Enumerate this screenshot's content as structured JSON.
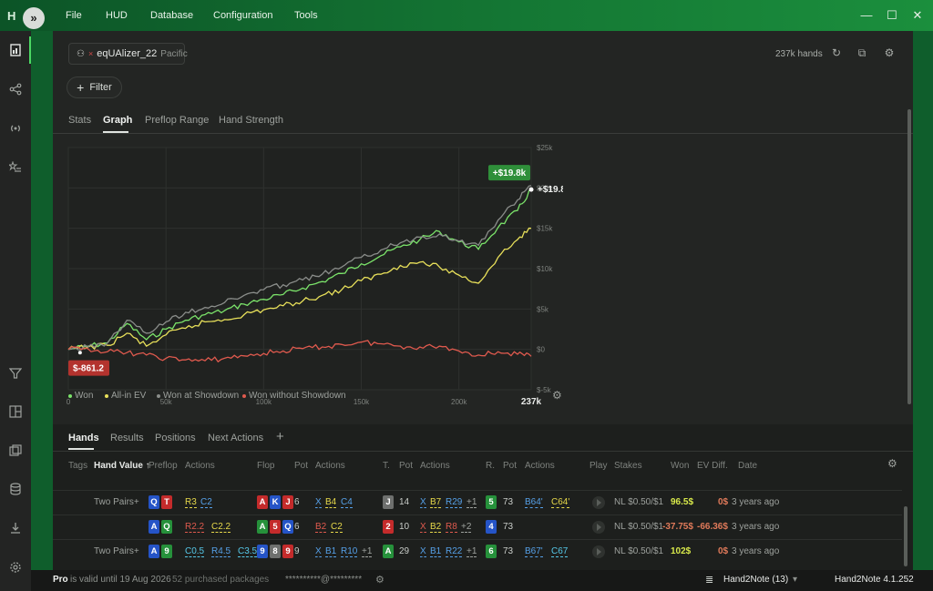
{
  "menu": {
    "items": [
      "File",
      "HUD",
      "Database",
      "Configuration",
      "Tools"
    ]
  },
  "player": {
    "name": "eqUAlizer_22",
    "site": "Pacific",
    "hands": "237k hands"
  },
  "filter_label": "Filter",
  "tabs": [
    "Stats",
    "Graph",
    "Preflop Range",
    "Hand Strength"
  ],
  "chart_data": {
    "type": "line",
    "x_ticks": [
      "0",
      "50k",
      "100k",
      "150k",
      "200k",
      "237k"
    ],
    "y_ticks": [
      "$25k",
      "$20k",
      "$15k",
      "$10k",
      "$5k",
      "$0",
      "$-5k"
    ],
    "ylim": [
      -5000,
      25000
    ],
    "xlim": [
      0,
      237000
    ],
    "grid": true,
    "legend": "bottom-left",
    "badge_high": "+$19.8k",
    "end_label": "+$19.8k",
    "badge_low": "$-861.2",
    "series": [
      {
        "name": "Won",
        "color": "#7be36a",
        "x": [
          0,
          10000,
          20000,
          30000,
          40000,
          50000,
          60000,
          70000,
          80000,
          90000,
          100000,
          110000,
          120000,
          130000,
          140000,
          150000,
          160000,
          170000,
          180000,
          190000,
          200000,
          210000,
          220000,
          230000,
          237000
        ],
        "y": [
          0,
          400,
          800,
          3200,
          1200,
          2500,
          3600,
          4300,
          4800,
          5600,
          6200,
          6800,
          7600,
          8400,
          9400,
          10600,
          11600,
          12700,
          13600,
          14600,
          13300,
          12400,
          15100,
          17200,
          19800
        ]
      },
      {
        "name": "All-in EV",
        "color": "#e8e05a",
        "x": [
          0,
          10000,
          20000,
          30000,
          40000,
          50000,
          60000,
          70000,
          80000,
          90000,
          100000,
          110000,
          120000,
          130000,
          140000,
          150000,
          160000,
          170000,
          180000,
          190000,
          200000,
          210000,
          220000,
          230000,
          237000
        ],
        "y": [
          0,
          300,
          500,
          2000,
          400,
          1800,
          2600,
          3400,
          3700,
          4300,
          4900,
          5400,
          6000,
          6700,
          7400,
          8500,
          9300,
          10400,
          10800,
          10200,
          9200,
          8200,
          11400,
          13600,
          15000
        ]
      },
      {
        "name": "Won at Showdown",
        "color": "#8a8d8a",
        "x": [
          0,
          10000,
          20000,
          30000,
          40000,
          50000,
          60000,
          70000,
          80000,
          90000,
          100000,
          110000,
          120000,
          130000,
          140000,
          150000,
          160000,
          170000,
          180000,
          190000,
          200000,
          210000,
          220000,
          230000,
          237000
        ],
        "y": [
          0,
          300,
          800,
          3600,
          2000,
          3400,
          4600,
          5200,
          5800,
          6700,
          7400,
          8000,
          8600,
          9300,
          10200,
          11400,
          12300,
          13200,
          13900,
          14300,
          13400,
          12900,
          16000,
          18500,
          20300
        ]
      },
      {
        "name": "Won without Showdown",
        "color": "#e05a4e",
        "x": [
          0,
          10000,
          20000,
          30000,
          40000,
          50000,
          60000,
          70000,
          80000,
          90000,
          100000,
          110000,
          120000,
          130000,
          140000,
          150000,
          160000,
          170000,
          180000,
          190000,
          200000,
          210000,
          220000,
          230000,
          237000
        ],
        "y": [
          0,
          100,
          -300,
          -400,
          -700,
          -1100,
          -1300,
          -1400,
          -1100,
          -800,
          -500,
          -200,
          100,
          300,
          600,
          900,
          700,
          400,
          300,
          400,
          -200,
          -700,
          -300,
          -600,
          -861
        ]
      }
    ]
  },
  "hands_tabs": [
    "Hands",
    "Results",
    "Positions",
    "Next Actions"
  ],
  "columns": {
    "tags": "Tags",
    "hand_value": "Hand Value ↑",
    "preflop": "Preflop",
    "actions1": "Actions",
    "flop": "Flop",
    "pot1": "Pot",
    "actions2": "Actions",
    "turn": "T.",
    "pot2": "Pot",
    "actions3": "Actions",
    "river": "R.",
    "pot3": "Pot",
    "actions4": "Actions",
    "play": "Play",
    "stakes": "Stakes",
    "won": "Won",
    "ev_diff": "EV Diff.",
    "date": "Date"
  },
  "rows": [
    {
      "hand_value": "Two Pairs+",
      "preflop_cards": [
        {
          "r": "Q",
          "c": "#2554c7"
        },
        {
          "r": "T",
          "c": "#c42b2b"
        }
      ],
      "preflop_actions": [
        {
          "t": "R3",
          "c": "#e6d84a"
        },
        {
          "t": "C2",
          "c": "#56a0e8"
        }
      ],
      "flop_cards": [
        {
          "r": "A",
          "c": "#c42b2b"
        },
        {
          "r": "K",
          "c": "#2554c7"
        },
        {
          "r": "J",
          "c": "#c42b2b"
        }
      ],
      "flop_pot": "6",
      "flop_actions": [
        {
          "t": "X",
          "c": "#56a0e8"
        },
        {
          "t": "B4",
          "c": "#e6d84a"
        },
        {
          "t": "C4",
          "c": "#56a0e8"
        }
      ],
      "turn_card": {
        "r": "J",
        "c": "#6e706e"
      },
      "turn_pot": "14",
      "turn_actions": [
        {
          "t": "X",
          "c": "#56a0e8"
        },
        {
          "t": "B7",
          "c": "#e6d84a"
        },
        {
          "t": "R29",
          "c": "#56a0e8"
        },
        {
          "t": "+1",
          "c": "#9da19d"
        }
      ],
      "river_card": {
        "r": "5",
        "c": "#26913b"
      },
      "river_pot": "73",
      "river_actions": [
        {
          "t": "B64'",
          "c": "#56a0e8"
        },
        {
          "t": "C64'",
          "c": "#e6d84a"
        }
      ],
      "stakes": "NL $0.50/$1",
      "won": "96.5$",
      "won_color": "#d7e84a",
      "ev_diff": "0$",
      "ev_color": "#e07a5a",
      "date": "3 years ago"
    },
    {
      "hand_value": "",
      "preflop_cards": [
        {
          "r": "A",
          "c": "#2554c7"
        },
        {
          "r": "Q",
          "c": "#26913b"
        }
      ],
      "preflop_actions": [
        {
          "t": "R2.2",
          "c": "#e05a4e"
        },
        {
          "t": "C2.2",
          "c": "#e6d84a"
        }
      ],
      "flop_cards": [
        {
          "r": "A",
          "c": "#26913b"
        },
        {
          "r": "5",
          "c": "#c42b2b"
        },
        {
          "r": "Q",
          "c": "#2554c7"
        }
      ],
      "flop_pot": "6",
      "flop_actions": [
        {
          "t": "B2",
          "c": "#e05a4e"
        },
        {
          "t": "C2",
          "c": "#e6d84a"
        }
      ],
      "turn_card": {
        "r": "2",
        "c": "#c42b2b"
      },
      "turn_pot": "10",
      "turn_actions": [
        {
          "t": "X",
          "c": "#e05a4e"
        },
        {
          "t": "B2",
          "c": "#e6d84a"
        },
        {
          "t": "R8",
          "c": "#e05a4e"
        },
        {
          "t": "+2",
          "c": "#9da19d"
        }
      ],
      "river_card": {
        "r": "4",
        "c": "#2554c7"
      },
      "river_pot": "73",
      "river_actions": [],
      "stakes": "NL $0.50/$1",
      "won": "-37.75$",
      "won_color": "#e07a5a",
      "ev_diff": "-66.36$",
      "ev_color": "#e07a5a",
      "date": "3 years ago"
    },
    {
      "hand_value": "Two Pairs+",
      "preflop_cards": [
        {
          "r": "A",
          "c": "#2554c7"
        },
        {
          "r": "9",
          "c": "#26913b"
        }
      ],
      "preflop_actions": [
        {
          "t": "C0.5",
          "c": "#56c8e8"
        },
        {
          "t": "R4.5",
          "c": "#56a0e8"
        },
        {
          "t": "C3.5",
          "c": "#56c8e8"
        }
      ],
      "flop_cards": [
        {
          "r": "9",
          "c": "#2554c7"
        },
        {
          "r": "8",
          "c": "#6e706e"
        },
        {
          "r": "9",
          "c": "#c42b2b"
        }
      ],
      "flop_pot": "9",
      "flop_actions": [
        {
          "t": "X",
          "c": "#56a0e8"
        },
        {
          "t": "B1",
          "c": "#56a0e8"
        },
        {
          "t": "R10",
          "c": "#56a0e8"
        },
        {
          "t": "+1",
          "c": "#9da19d"
        }
      ],
      "turn_card": {
        "r": "A",
        "c": "#26913b"
      },
      "turn_pot": "29",
      "turn_actions": [
        {
          "t": "X",
          "c": "#56a0e8"
        },
        {
          "t": "B1",
          "c": "#56a0e8"
        },
        {
          "t": "R22",
          "c": "#56a0e8"
        },
        {
          "t": "+1",
          "c": "#9da19d"
        }
      ],
      "river_card": {
        "r": "6",
        "c": "#26913b"
      },
      "river_pot": "73",
      "river_actions": [
        {
          "t": "B67'",
          "c": "#56a0e8"
        },
        {
          "t": "C67",
          "c": "#56c8e8"
        }
      ],
      "stakes": "NL $0.50/$1",
      "won": "102$",
      "won_color": "#d7e84a",
      "ev_diff": "0$",
      "ev_color": "#e07a5a",
      "date": "3 years ago"
    }
  ],
  "status": {
    "pro": "Pro",
    "valid": "is valid until 19 Aug 2026",
    "packages": "52 purchased packages",
    "email": "**********@*********",
    "db": "Hand2Note (13)",
    "version": "Hand2Note 4.1.252"
  },
  "colors": {
    "accent": "#4cd964",
    "badge_green": "#2f8f3a",
    "badge_red": "#b3332e"
  }
}
